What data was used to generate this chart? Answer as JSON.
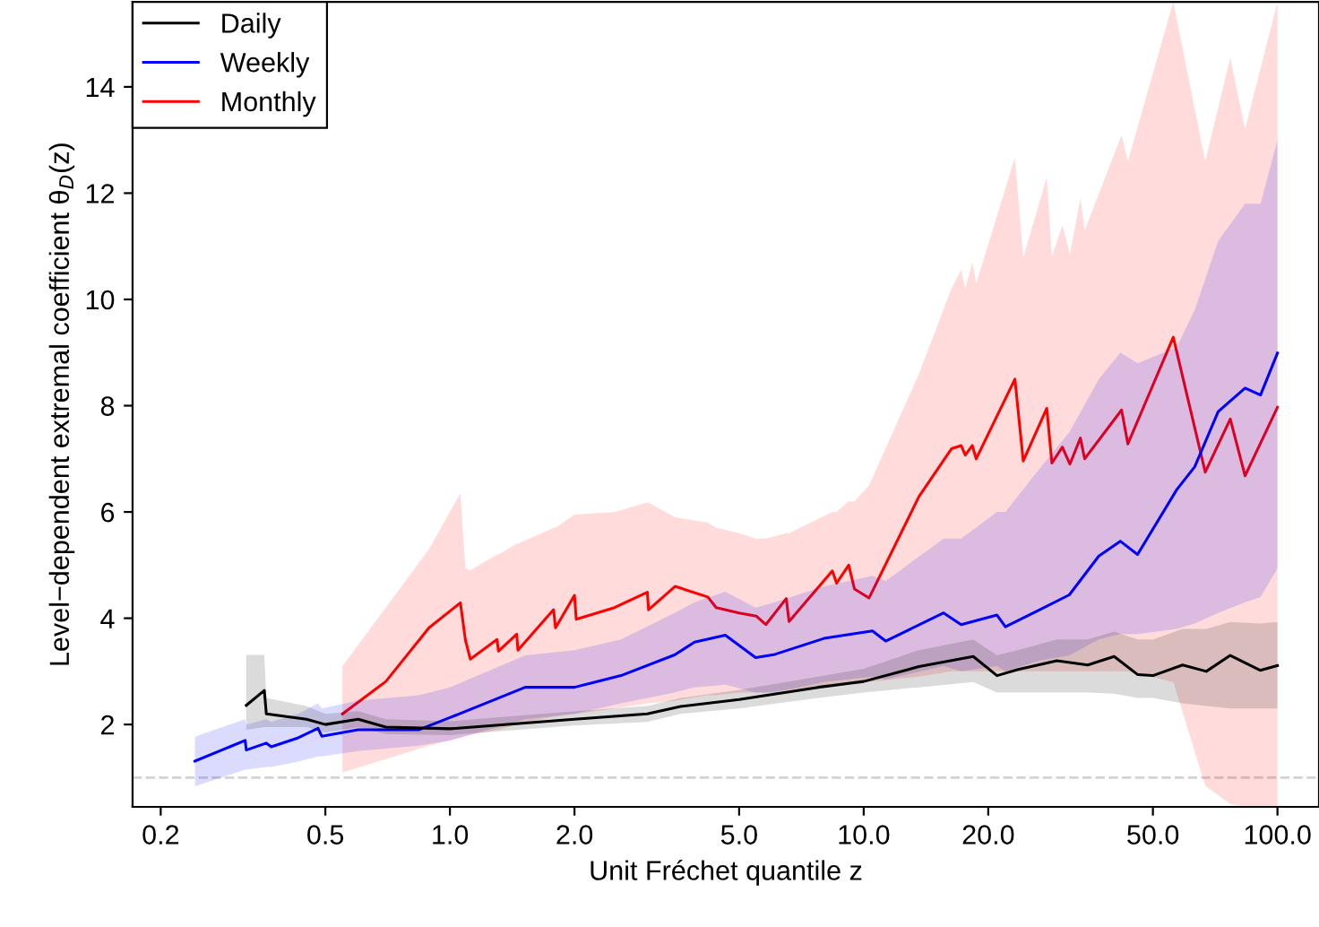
{
  "chart_data": {
    "type": "line",
    "xlabel": "Unit Fréchet quantile z",
    "ylabel": "Level−dependent extremal coefficient θ$_{D}$(z)",
    "log": "x",
    "grid": false,
    "legend": "top left",
    "line_style": "solid",
    "marker": "none",
    "xlim": [
      0.171,
      126
    ],
    "ylim": [
      0.45,
      15.6
    ],
    "xticks": [
      0.2,
      0.5,
      {
        "value": 1,
        "label": "1.0"
      },
      {
        "value": 2,
        "label": "2.0"
      },
      {
        "value": 5,
        "label": "5.0"
      },
      {
        "value": 10,
        "label": "10.0"
      },
      {
        "value": 20,
        "label": "20.0"
      },
      {
        "value": 50,
        "label": "50.0"
      },
      {
        "value": 100,
        "label": "100.0"
      }
    ],
    "yticks": [
      2,
      4,
      6,
      8,
      10,
      12,
      14
    ],
    "ref_lines": [
      {
        "axis": "y",
        "value": 1,
        "color": "#d3d3d3",
        "line_style": "dashed"
      }
    ],
    "series": [
      {
        "name": "Monthly",
        "color": "#ff0000",
        "x": [
          0.55,
          0.7,
          0.89,
          1.06,
          1.09,
          1.12,
          1.3,
          1.31,
          1.45,
          1.46,
          1.78,
          1.8,
          2.0,
          2.02,
          2.5,
          3.0,
          3.02,
          3.5,
          4.2,
          4.4,
          5.0,
          5.5,
          5.8,
          6.5,
          6.6,
          8.4,
          8.6,
          9.2,
          9.5,
          10.3,
          13.6,
          16.3,
          17.2,
          17.6,
          18.3,
          18.7,
          23.2,
          24.3,
          27.7,
          28.5,
          30.2,
          31.5,
          33.4,
          34.2,
          42.0,
          43.5,
          56.0,
          66.9,
          76.9,
          83.5,
          100
        ],
        "values": [
          2.2,
          2.81,
          3.82,
          4.29,
          3.59,
          3.23,
          3.6,
          3.38,
          3.7,
          3.4,
          4.16,
          3.82,
          4.43,
          3.98,
          4.2,
          4.49,
          4.16,
          4.6,
          4.4,
          4.2,
          4.1,
          4.04,
          3.88,
          4.37,
          3.94,
          4.89,
          4.66,
          5.0,
          4.55,
          4.38,
          6.29,
          7.19,
          7.25,
          7.07,
          7.25,
          7.0,
          8.5,
          6.96,
          7.95,
          6.92,
          7.22,
          6.9,
          7.39,
          7.0,
          7.92,
          7.28,
          9.29,
          6.75,
          7.75,
          6.68,
          7.97
        ],
        "lower": [
          1.1,
          1.35,
          1.6,
          1.75,
          1.78,
          1.8,
          1.9,
          1.9,
          2.0,
          2.0,
          2.15,
          2.15,
          2.2,
          2.2,
          2.3,
          2.4,
          2.4,
          2.45,
          2.55,
          2.55,
          2.6,
          2.6,
          2.6,
          2.65,
          2.65,
          2.75,
          2.75,
          2.8,
          2.8,
          2.8,
          2.9,
          3.0,
          3.0,
          3.0,
          3.0,
          3.0,
          3.0,
          3.0,
          3.0,
          3.0,
          3.0,
          3.0,
          3.0,
          3.0,
          3.0,
          3.0,
          2.8,
          0.85,
          0.5,
          0.46,
          0.46
        ],
        "upper": [
          3.1,
          4.2,
          5.3,
          6.35,
          4.94,
          4.9,
          5.2,
          5.2,
          5.4,
          5.4,
          5.7,
          5.7,
          5.95,
          5.95,
          6.0,
          6.18,
          6.18,
          5.9,
          5.8,
          5.7,
          5.6,
          5.5,
          5.5,
          5.6,
          5.6,
          6.0,
          6.0,
          6.2,
          6.2,
          6.5,
          8.6,
          10.2,
          10.56,
          10.2,
          10.7,
          10.3,
          12.67,
          10.79,
          12.3,
          10.8,
          11.4,
          10.85,
          11.9,
          11.3,
          13.09,
          12.6,
          15.6,
          12.6,
          14.55,
          13.2,
          15.6
        ]
      },
      {
        "name": "Weekly",
        "color": "#0000ff",
        "x": [
          0.242,
          0.32,
          0.322,
          0.36,
          0.37,
          0.43,
          0.48,
          0.49,
          0.6,
          0.84,
          1.0,
          1.52,
          2.0,
          2.59,
          3.49,
          3.9,
          4.63,
          5.48,
          6.1,
          8.02,
          10.5,
          11.3,
          15.6,
          17.2,
          21.0,
          22.0,
          26.5,
          31.4,
          37.0,
          41.7,
          45.9,
          57.1,
          63.1,
          71.9,
          83.5,
          91.0,
          100
        ],
        "values": [
          1.31,
          1.7,
          1.52,
          1.65,
          1.58,
          1.75,
          1.93,
          1.78,
          1.9,
          1.9,
          2.13,
          2.7,
          2.7,
          2.92,
          3.31,
          3.55,
          3.68,
          3.26,
          3.32,
          3.62,
          3.76,
          3.57,
          4.1,
          3.88,
          4.06,
          3.84,
          4.15,
          4.44,
          5.17,
          5.45,
          5.2,
          6.42,
          6.85,
          7.89,
          8.33,
          8.2,
          8.99
        ],
        "lower": [
          0.84,
          1.15,
          1.15,
          1.2,
          1.2,
          1.3,
          1.4,
          1.4,
          1.5,
          1.6,
          1.7,
          2.1,
          2.2,
          2.4,
          2.6,
          2.7,
          2.75,
          2.6,
          2.6,
          2.8,
          2.9,
          2.85,
          3.1,
          3.0,
          3.1,
          3.0,
          3.2,
          3.3,
          3.6,
          3.7,
          3.7,
          3.8,
          3.9,
          4.1,
          4.3,
          4.4,
          4.94
        ],
        "upper": [
          1.77,
          2.1,
          2.0,
          2.1,
          2.05,
          2.2,
          2.4,
          2.3,
          2.45,
          2.55,
          2.7,
          3.3,
          3.4,
          3.6,
          4.1,
          4.3,
          4.5,
          4.2,
          4.3,
          4.6,
          4.8,
          4.7,
          5.5,
          5.5,
          6.0,
          6.0,
          6.8,
          7.5,
          8.5,
          9.0,
          8.8,
          9.1,
          9.8,
          11.1,
          11.8,
          11.8,
          13.0
        ]
      },
      {
        "name": "Daily",
        "color": "#000000",
        "x": [
          0.322,
          0.356,
          0.36,
          0.45,
          0.5,
          0.6,
          0.7,
          1.0,
          2.0,
          3.0,
          3.61,
          5.0,
          7.76,
          10.0,
          13.6,
          18.4,
          21.0,
          23.5,
          29.3,
          34.8,
          40.3,
          45.9,
          50.0,
          59.0,
          67.3,
          76.9,
          90.8,
          100
        ],
        "values": [
          2.36,
          2.64,
          2.2,
          2.1,
          2.0,
          2.1,
          1.95,
          1.92,
          2.1,
          2.2,
          2.34,
          2.47,
          2.7,
          2.81,
          3.09,
          3.28,
          2.92,
          3.03,
          3.2,
          3.12,
          3.28,
          2.94,
          2.92,
          3.12,
          3.0,
          3.3,
          3.02,
          3.11
        ],
        "lower": [
          1.9,
          1.95,
          1.95,
          1.95,
          1.85,
          1.95,
          1.82,
          1.8,
          1.98,
          2.05,
          2.2,
          2.3,
          2.5,
          2.6,
          2.7,
          2.8,
          2.6,
          2.6,
          2.6,
          2.6,
          2.58,
          2.5,
          2.5,
          2.4,
          2.35,
          2.3,
          2.3,
          2.3
        ],
        "upper": [
          3.31,
          3.31,
          2.5,
          2.35,
          2.2,
          2.25,
          2.1,
          2.06,
          2.25,
          2.35,
          2.5,
          2.65,
          2.9,
          3.05,
          3.4,
          3.6,
          3.3,
          3.4,
          3.6,
          3.6,
          3.75,
          3.6,
          3.6,
          3.8,
          3.8,
          3.93,
          3.9,
          3.93
        ]
      }
    ]
  }
}
